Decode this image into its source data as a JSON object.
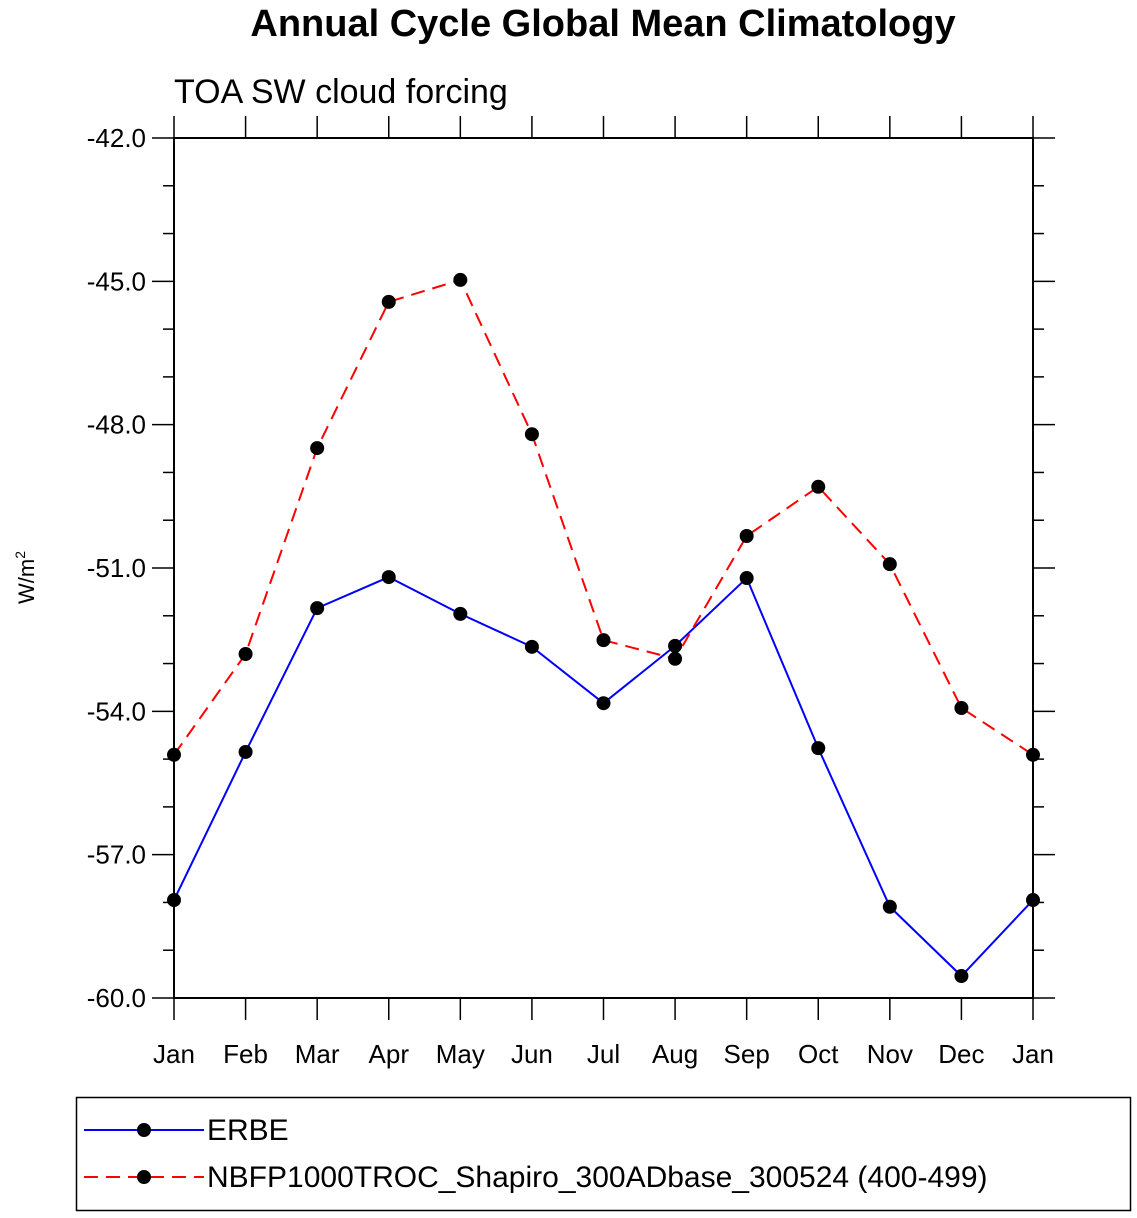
{
  "chart_data": {
    "type": "line",
    "title": "Annual Cycle Global Mean Climatology",
    "subtitle": "TOA SW cloud forcing",
    "xlabel": "",
    "ylabel": "W/m",
    "ylabel_superscript": "2",
    "ylim": [
      -60.0,
      -42.0
    ],
    "yticks": [
      "-42.0",
      "-45.0",
      "-48.0",
      "-51.0",
      "-54.0",
      "-57.0",
      "-60.0"
    ],
    "ytick_values": [
      -42,
      -45,
      -48,
      -51,
      -54,
      -57,
      -60
    ],
    "categories": [
      "Jan",
      "Feb",
      "Mar",
      "Apr",
      "May",
      "Jun",
      "Jul",
      "Aug",
      "Sep",
      "Oct",
      "Nov",
      "Dec",
      "Jan"
    ],
    "grid": false,
    "legend_position": "bottom",
    "series": [
      {
        "name": "ERBE",
        "color": "#0000ff",
        "dash": "solid",
        "values": [
          -57.95,
          -54.85,
          -51.84,
          -51.19,
          -51.96,
          -52.65,
          -53.83,
          -52.63,
          -51.21,
          -54.77,
          -58.09,
          -59.54,
          -57.95
        ]
      },
      {
        "name": "NBFP1000TROC_Shapiro_300ADbase_300524 (400-499)",
        "color": "#ff0000",
        "dash": "dashed",
        "values": [
          -54.91,
          -52.8,
          -48.49,
          -45.43,
          -44.97,
          -48.2,
          -52.51,
          -52.9,
          -50.33,
          -49.3,
          -50.92,
          -53.93,
          -54.91
        ]
      }
    ]
  }
}
